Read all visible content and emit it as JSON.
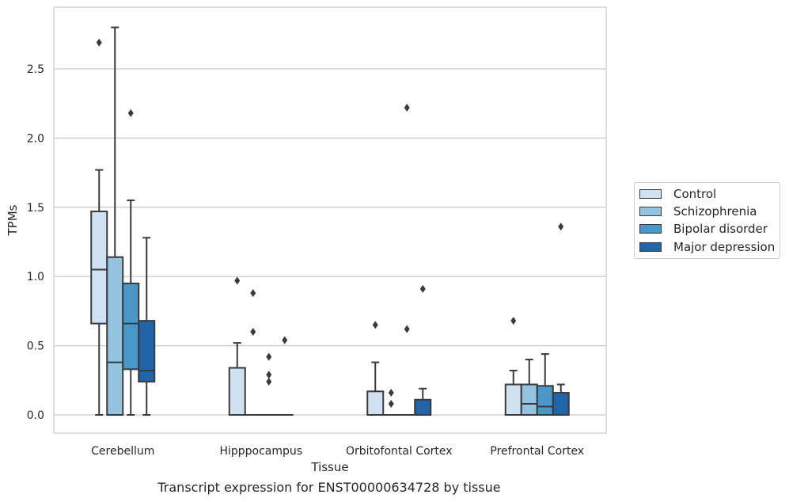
{
  "chart_data": {
    "type": "box",
    "caption": "Transcript expression for ENST00000634728 by tissue",
    "xlabel": "Tissue",
    "ylabel": "TPMs",
    "ylim": [
      -0.14,
      2.95
    ],
    "yticks": [
      0.0,
      0.5,
      1.0,
      1.5,
      2.0,
      2.5
    ],
    "ytick_labels": [
      "0.0",
      "0.5",
      "1.0",
      "1.5",
      "2.0",
      "2.5"
    ],
    "grid": "horizontal",
    "legend_position": "right",
    "categories": [
      "Cerebellum",
      "Hipppocampus",
      "Orbitofontal Cortex",
      "Prefrontal Cortex"
    ],
    "series": [
      {
        "name": "Control",
        "color": "#d0e1f2",
        "boxes": [
          {
            "whisker_low": 0.0,
            "q1": 0.66,
            "median": 1.05,
            "q3": 1.47,
            "whisker_high": 1.77,
            "outliers": [
              2.69
            ]
          },
          {
            "whisker_low": 0.0,
            "q1": 0.0,
            "median": 0.0,
            "q3": 0.34,
            "whisker_high": 0.52,
            "outliers": [
              0.97
            ]
          },
          {
            "whisker_low": 0.0,
            "q1": 0.0,
            "median": 0.0,
            "q3": 0.17,
            "whisker_high": 0.38,
            "outliers": [
              0.65
            ]
          },
          {
            "whisker_low": 0.0,
            "q1": 0.0,
            "median": 0.0,
            "q3": 0.22,
            "whisker_high": 0.32,
            "outliers": [
              0.68
            ]
          }
        ]
      },
      {
        "name": "Schizophrenia",
        "color": "#94c4df",
        "boxes": [
          {
            "whisker_low": 0.0,
            "q1": 0.0,
            "median": 0.38,
            "q3": 1.14,
            "whisker_high": 2.8,
            "outliers": []
          },
          {
            "whisker_low": 0.0,
            "q1": 0.0,
            "median": 0.0,
            "q3": 0.0,
            "whisker_high": 0.0,
            "outliers": [
              0.88,
              0.6
            ]
          },
          {
            "whisker_low": 0.0,
            "q1": 0.0,
            "median": 0.0,
            "q3": 0.0,
            "whisker_high": 0.0,
            "outliers": [
              0.16,
              0.08
            ]
          },
          {
            "whisker_low": 0.0,
            "q1": 0.0,
            "median": 0.08,
            "q3": 0.22,
            "whisker_high": 0.4,
            "outliers": []
          }
        ]
      },
      {
        "name": "Bipolar disorder",
        "color": "#4a98c9",
        "boxes": [
          {
            "whisker_low": 0.0,
            "q1": 0.33,
            "median": 0.66,
            "q3": 0.95,
            "whisker_high": 1.55,
            "outliers": [
              2.18
            ]
          },
          {
            "whisker_low": 0.0,
            "q1": 0.0,
            "median": 0.0,
            "q3": 0.0,
            "whisker_high": 0.0,
            "outliers": [
              0.42,
              0.29,
              0.24
            ]
          },
          {
            "whisker_low": 0.0,
            "q1": 0.0,
            "median": 0.0,
            "q3": 0.0,
            "whisker_high": 0.0,
            "outliers": [
              2.22,
              0.62
            ]
          },
          {
            "whisker_low": 0.0,
            "q1": 0.0,
            "median": 0.06,
            "q3": 0.21,
            "whisker_high": 0.44,
            "outliers": []
          }
        ]
      },
      {
        "name": "Major depression",
        "color": "#2165a8",
        "boxes": [
          {
            "whisker_low": 0.0,
            "q1": 0.24,
            "median": 0.32,
            "q3": 0.68,
            "whisker_high": 1.28,
            "outliers": []
          },
          {
            "whisker_low": 0.0,
            "q1": 0.0,
            "median": 0.0,
            "q3": 0.0,
            "whisker_high": 0.0,
            "outliers": [
              0.54
            ]
          },
          {
            "whisker_low": 0.0,
            "q1": 0.0,
            "median": 0.0,
            "q3": 0.11,
            "whisker_high": 0.19,
            "outliers": [
              0.91
            ]
          },
          {
            "whisker_low": 0.0,
            "q1": 0.0,
            "median": 0.0,
            "q3": 0.16,
            "whisker_high": 0.22,
            "outliers": [
              1.36
            ]
          }
        ]
      }
    ]
  }
}
